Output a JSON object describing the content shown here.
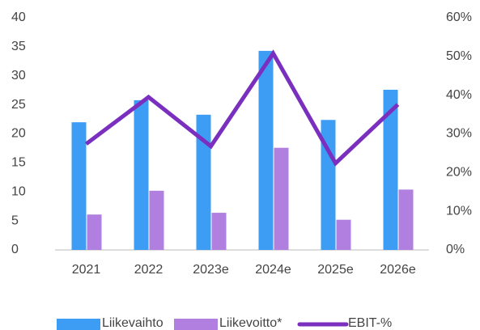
{
  "chart_data": {
    "type": "bar",
    "categories": [
      "2021",
      "2022",
      "2023e",
      "2024e",
      "2025e",
      "2026e"
    ],
    "series": [
      {
        "name": "Liikevaihto",
        "color": "#3d9df5",
        "values": [
          22.0,
          25.8,
          23.3,
          34.3,
          22.4,
          27.6
        ]
      },
      {
        "name": "Liikevoitto*",
        "color": "#b07fe0",
        "values": [
          6.1,
          10.2,
          6.4,
          17.6,
          5.2,
          10.4
        ]
      },
      {
        "name": "EBIT-%",
        "color": "#7a2fbf",
        "type": "line",
        "axis": "y2",
        "values": [
          27.4,
          39.5,
          26.8,
          50.8,
          22.4,
          37.6
        ]
      }
    ],
    "ylim": [
      0,
      40
    ],
    "yticks": [
      0,
      5,
      10,
      15,
      20,
      25,
      30,
      35,
      40
    ],
    "y2lim": [
      0,
      60
    ],
    "y2ticks": [
      {
        "value": 0,
        "label": "0%"
      },
      {
        "value": 10,
        "label": "10%"
      },
      {
        "value": 20,
        "label": "20%"
      },
      {
        "value": 30,
        "label": "30%"
      },
      {
        "value": 40,
        "label": "40%"
      },
      {
        "value": 50,
        "label": "50%"
      },
      {
        "value": 60,
        "label": "60%"
      }
    ],
    "grid": false,
    "legend": "bottom"
  }
}
